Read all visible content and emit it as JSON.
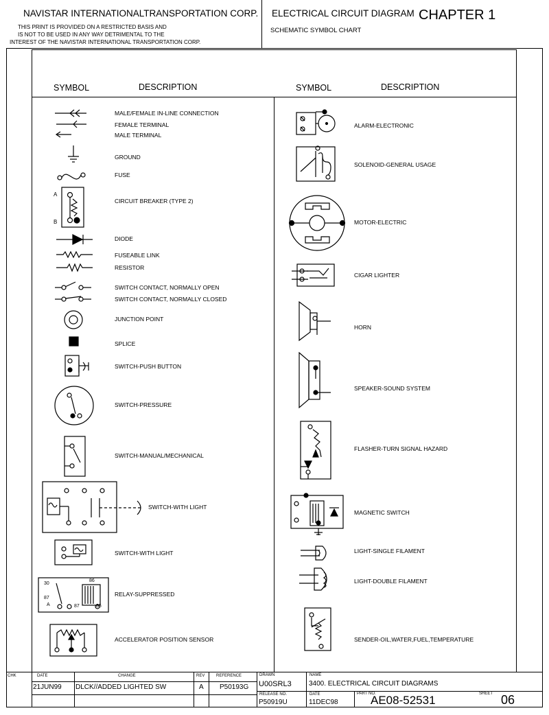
{
  "header": {
    "company": "NAVISTAR INTERNATIONALTRANSPORTATION CORP.",
    "notice_line1": "THIS PRINT IS PROVIDED ON A RESTRICTED BASIS AND",
    "notice_line2": "IS NOT TO BE USED IN ANY WAY DETRIMENTAL TO THE",
    "notice_line3": "INTEREST OF THE NAVISTAR INTERNATIONAL TRANSPORTATION CORP.",
    "title": "ELECTRICAL CIRCUIT DIAGRAM",
    "subtitle": "SCHEMATIC SYMBOL CHART",
    "chapter": "CHAPTER 1"
  },
  "columns": {
    "symbol_label": "SYMBOL",
    "description_label": "DESCRIPTION"
  },
  "left_items": [
    "MALE/FEMALE IN-LINE CONNECTION",
    "FEMALE TERMINAL",
    "MALE TERMINAL",
    "GROUND",
    "FUSE",
    "CIRCUIT BREAKER (TYPE 2)",
    "DIODE",
    "FUSEABLE LINK",
    "RESISTOR",
    "SWITCH CONTACT, NORMALLY OPEN",
    "SWITCH CONTACT, NORMALLY CLOSED",
    "JUNCTION POINT",
    "SPLICE",
    "SWITCH-PUSH BUTTON",
    "SWITCH-PRESSURE",
    "SWITCH-MANUAL/MECHANICAL",
    "SWITCH-WITH LIGHT",
    "SWITCH-WITH LIGHT",
    "RELAY-SUPPRESSED",
    "ACCELERATOR POSITION SENSOR"
  ],
  "right_items": [
    "ALARM-ELECTRONIC",
    "SOLENOID-GENERAL USAGE",
    "MOTOR-ELECTRIC",
    "CIGAR LIGHTER",
    "HORN",
    "SPEAKER-SOUND SYSTEM",
    "FLASHER-TURN SIGNAL HAZARD",
    "MAGNETIC SWITCH",
    "LIGHT-SINGLE FILAMENT",
    "LIGHT-DOUBLE FILAMENT",
    "SENDER-OIL,WATER,FUEL,TEMPERATURE"
  ],
  "symbol_text": {
    "cb_a": "A",
    "cb_b": "B",
    "relay_30": "30",
    "relay_86": "86",
    "relay_87": "87",
    "relay_a": "A",
    "relay_87b": "87",
    "relay_85": "85"
  },
  "title_block": {
    "chk_label": "CHK",
    "date_label": "DATE",
    "change_label": "CHANGE",
    "rev_label": "REV",
    "reference_label": "REFERENCE",
    "drawn_label": "DRAWN",
    "name_label": "NAME",
    "release_label": "RELEASE NO.",
    "date2_label": "DATE",
    "part_label": "PART NO.",
    "sheet_label": "SHEET",
    "date": "21JUN99",
    "change": "DLCK//ADDED LIGHTED SW",
    "rev": "A",
    "reference": "P50193G",
    "drawn": "U00SRL3",
    "name": "3400. ELECTRICAL CIRCUIT DIAGRAMS",
    "release": "P50919U",
    "date2": "11DEC98",
    "part_no": "AE08-52531",
    "sheet": "06"
  }
}
